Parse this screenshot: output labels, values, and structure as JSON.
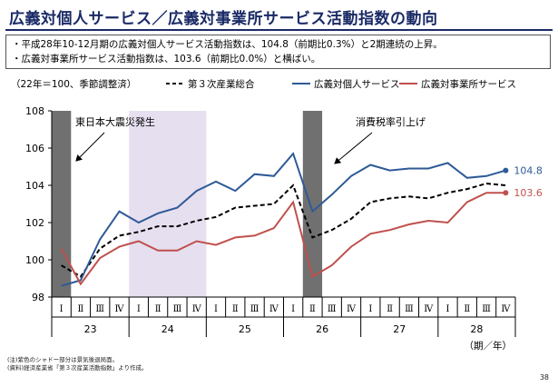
{
  "title": "広義対個人サービス／広義対事業所サービス活動指数の動向",
  "summary": [
    "・平成28年10-12月期の広義対個人サービス活動指数は、104.8（前期比0.3%）と2期連続の上昇。",
    "・広義対事業所サービス活動指数は、103.6（前期比0.0%）と横ばい。"
  ],
  "chart_data": {
    "type": "line",
    "unit_note": "（22年＝100、季節調整済）",
    "x": [
      "Ⅰ",
      "Ⅱ",
      "Ⅲ",
      "Ⅳ",
      "Ⅰ",
      "Ⅱ",
      "Ⅲ",
      "Ⅳ",
      "Ⅰ",
      "Ⅱ",
      "Ⅲ",
      "Ⅳ",
      "Ⅰ",
      "Ⅱ",
      "Ⅲ",
      "Ⅳ",
      "Ⅰ",
      "Ⅱ",
      "Ⅲ",
      "Ⅳ",
      "Ⅰ",
      "Ⅱ",
      "Ⅲ",
      "Ⅳ"
    ],
    "years": [
      {
        "label": "23",
        "start": 0,
        "end": 3
      },
      {
        "label": "24",
        "start": 4,
        "end": 7
      },
      {
        "label": "25",
        "start": 8,
        "end": 11
      },
      {
        "label": "26",
        "start": 12,
        "end": 15
      },
      {
        "label": "27",
        "start": 16,
        "end": 19
      },
      {
        "label": "28",
        "start": 20,
        "end": 23
      }
    ],
    "xlabel": "（期／年）",
    "ylim": [
      98,
      108
    ],
    "yticks": [
      98,
      100,
      102,
      104,
      106,
      108
    ],
    "series": [
      {
        "name": "第３次産業総合",
        "color": "#000000",
        "dash": true,
        "values": [
          99.7,
          99.1,
          100.6,
          101.3,
          101.5,
          101.8,
          101.8,
          102.1,
          102.3,
          102.8,
          102.9,
          103.0,
          104.0,
          101.2,
          101.6,
          102.2,
          103.1,
          103.3,
          103.4,
          103.3,
          103.6,
          103.8,
          104.1,
          104.0
        ]
      },
      {
        "name": "広義対個人サービス",
        "color": "#2e5a96",
        "dash": false,
        "values": [
          98.6,
          98.9,
          101.1,
          102.6,
          102.0,
          102.5,
          102.8,
          103.7,
          104.2,
          103.7,
          104.6,
          104.5,
          105.7,
          102.6,
          103.5,
          104.5,
          105.1,
          104.8,
          104.9,
          104.9,
          105.2,
          104.4,
          104.5,
          104.8
        ]
      },
      {
        "name": "広義対事業所サービス",
        "color": "#c0504d",
        "dash": false,
        "values": [
          100.6,
          98.7,
          100.1,
          100.7,
          101.0,
          100.5,
          100.5,
          101.0,
          100.8,
          101.2,
          101.3,
          101.7,
          103.1,
          99.1,
          99.7,
          100.7,
          101.4,
          101.6,
          101.9,
          102.1,
          102.0,
          103.1,
          103.6,
          103.6
        ]
      }
    ],
    "end_labels": [
      {
        "series": 1,
        "text": "104.8"
      },
      {
        "series": 2,
        "text": "103.6"
      }
    ],
    "shaded": [
      {
        "start": 0,
        "end": 0,
        "color": "#707070"
      },
      {
        "start": 4,
        "end": 7,
        "color": "#e6dff0"
      },
      {
        "start": 13,
        "end": 13,
        "color": "#707070"
      }
    ],
    "annotations": [
      {
        "text": "東日本大震災発生",
        "arrow_to": 0
      },
      {
        "text": "消費税率引上げ",
        "arrow_to": 13
      }
    ]
  },
  "notes": [
    "(注)紫色のシャドー部分は景気後退局面。",
    "(資料)経済産業省「第３次産業活動指数」より作成。"
  ],
  "page_number": "38"
}
